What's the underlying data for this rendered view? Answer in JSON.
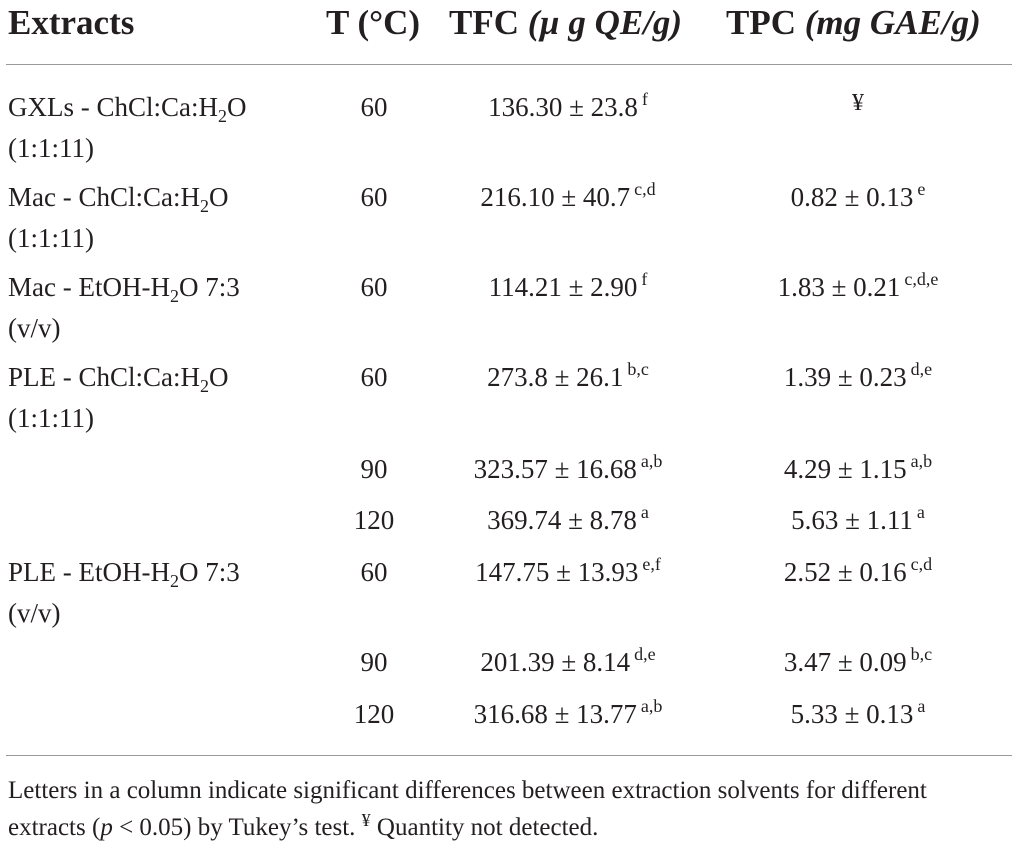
{
  "table": {
    "headers": {
      "extracts": "Extracts",
      "temp": "T (°C)",
      "tfc_name": "TFC",
      "tfc_unit": "(µ g QE/g)",
      "tpc_name": "TPC",
      "tpc_unit": "(mg GAE/g)"
    },
    "rows": [
      {
        "extract_pre": "GXLs - ChCl:Ca:H",
        "extract_sub": "2",
        "extract_post": "O",
        "extract_line2": "(1:1:11)",
        "temp": "60",
        "tfc_value": "136.30 ± 23.8",
        "tfc_letters": "f",
        "tpc_value": "",
        "tpc_letters": "",
        "tpc_nd": "¥"
      },
      {
        "extract_pre": "Mac - ChCl:Ca:H",
        "extract_sub": "2",
        "extract_post": "O",
        "extract_line2": "(1:1:11)",
        "temp": "60",
        "tfc_value": "216.10 ± 40.7",
        "tfc_letters": "c,d",
        "tpc_value": "0.82 ± 0.13",
        "tpc_letters": "e",
        "tpc_nd": ""
      },
      {
        "extract_pre": "Mac - EtOH-H",
        "extract_sub": "2",
        "extract_post": "O 7:3",
        "extract_line2": "(v/v)",
        "temp": "60",
        "tfc_value": "114.21 ± 2.90",
        "tfc_letters": "f",
        "tpc_value": "1.83 ± 0.21",
        "tpc_letters": "c,d,e",
        "tpc_nd": ""
      },
      {
        "extract_pre": "PLE - ChCl:Ca:H",
        "extract_sub": "2",
        "extract_post": "O",
        "extract_line2": "(1:1:11)",
        "temp": "60",
        "tfc_value": "273.8 ± 26.1",
        "tfc_letters": "b,c",
        "tpc_value": "1.39 ± 0.23",
        "tpc_letters": "d,e",
        "tpc_nd": ""
      },
      {
        "extract_pre": "",
        "extract_sub": "",
        "extract_post": "",
        "extract_line2": "",
        "temp": "90",
        "tfc_value": "323.57 ± 16.68",
        "tfc_letters": "a,b",
        "tpc_value": "4.29 ± 1.15",
        "tpc_letters": "a,b",
        "tpc_nd": ""
      },
      {
        "extract_pre": "",
        "extract_sub": "",
        "extract_post": "",
        "extract_line2": "",
        "temp": "120",
        "tfc_value": "369.74 ± 8.78",
        "tfc_letters": "a",
        "tpc_value": "5.63 ± 1.11",
        "tpc_letters": "a",
        "tpc_nd": ""
      },
      {
        "extract_pre": "PLE - EtOH-H",
        "extract_sub": "2",
        "extract_post": "O 7:3",
        "extract_line2": "(v/v)",
        "temp": "60",
        "tfc_value": "147.75 ± 13.93",
        "tfc_letters": "e,f",
        "tpc_value": "2.52 ± 0.16",
        "tpc_letters": "c,d",
        "tpc_nd": ""
      },
      {
        "extract_pre": "",
        "extract_sub": "",
        "extract_post": "",
        "extract_line2": "",
        "temp": "90",
        "tfc_value": "201.39 ± 8.14",
        "tfc_letters": "d,e",
        "tpc_value": "3.47 ± 0.09",
        "tpc_letters": "b,c",
        "tpc_nd": ""
      },
      {
        "extract_pre": "",
        "extract_sub": "",
        "extract_post": "",
        "extract_line2": "",
        "temp": "120",
        "tfc_value": "316.68 ± 13.77",
        "tfc_letters": "a,b",
        "tpc_value": "5.33 ± 0.13",
        "tpc_letters": "a",
        "tpc_nd": ""
      }
    ]
  },
  "footnote": {
    "part1": "Letters in a column indicate significant differences between extraction solvents for different extracts (",
    "p_symbol": "p",
    "part2": " < 0.05) by Tukey’s test. ",
    "symbol": "¥",
    "part3": " Quantity not detected."
  }
}
